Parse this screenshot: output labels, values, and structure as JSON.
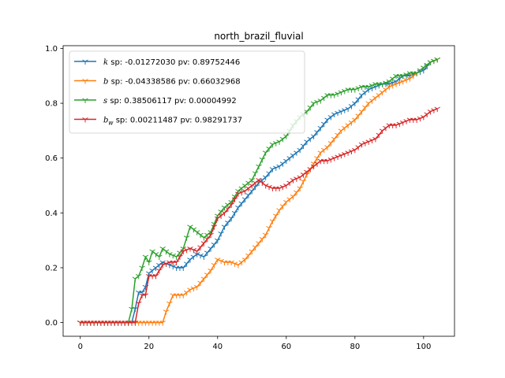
{
  "chart_data": {
    "type": "line",
    "title": "north_brazil_fluvial",
    "xlabel": "",
    "ylabel": "",
    "xlim": [
      -5,
      109
    ],
    "ylim": [
      -0.05,
      1.01
    ],
    "xticks": [
      0,
      20,
      40,
      60,
      80,
      100
    ],
    "yticks": [
      0.0,
      0.2,
      0.4,
      0.6,
      0.8,
      1.0
    ],
    "xtick_labels": [
      "0",
      "20",
      "40",
      "60",
      "80",
      "100"
    ],
    "ytick_labels": [
      "0.0",
      "0.2",
      "0.4",
      "0.6",
      "0.8",
      "1.0"
    ],
    "grid": false,
    "legend_position": "top-left",
    "series": [
      {
        "sym": "k",
        "sub": "",
        "stats": " sp: -0.01272030 pv: 0.89752446",
        "color": "#1f77b4",
        "points": [
          [
            0,
            0
          ],
          [
            15,
            0
          ],
          [
            16,
            0.05
          ],
          [
            17,
            0.11
          ],
          [
            18,
            0.11
          ],
          [
            19,
            0.13
          ],
          [
            20,
            0.18
          ],
          [
            22,
            0.2
          ],
          [
            24,
            0.22
          ],
          [
            26,
            0.21
          ],
          [
            28,
            0.2
          ],
          [
            30,
            0.2
          ],
          [
            32,
            0.23
          ],
          [
            34,
            0.25
          ],
          [
            36,
            0.24
          ],
          [
            38,
            0.27
          ],
          [
            40,
            0.3
          ],
          [
            42,
            0.35
          ],
          [
            44,
            0.38
          ],
          [
            46,
            0.42
          ],
          [
            48,
            0.45
          ],
          [
            50,
            0.48
          ],
          [
            52,
            0.51
          ],
          [
            54,
            0.53
          ],
          [
            56,
            0.56
          ],
          [
            58,
            0.57
          ],
          [
            60,
            0.59
          ],
          [
            62,
            0.61
          ],
          [
            64,
            0.63
          ],
          [
            66,
            0.66
          ],
          [
            68,
            0.68
          ],
          [
            70,
            0.71
          ],
          [
            72,
            0.74
          ],
          [
            74,
            0.76
          ],
          [
            76,
            0.77
          ],
          [
            78,
            0.78
          ],
          [
            80,
            0.8
          ],
          [
            82,
            0.83
          ],
          [
            84,
            0.85
          ],
          [
            86,
            0.86
          ],
          [
            88,
            0.87
          ],
          [
            90,
            0.87
          ],
          [
            92,
            0.88
          ],
          [
            94,
            0.9
          ],
          [
            96,
            0.9
          ],
          [
            98,
            0.91
          ],
          [
            100,
            0.92
          ],
          [
            102,
            0.95
          ],
          [
            104,
            0.96
          ]
        ]
      },
      {
        "sym": "b",
        "sub": "",
        "stats": " sp: -0.04338586 pv: 0.66032968",
        "color": "#ff7f0e",
        "points": [
          [
            0,
            0
          ],
          [
            24,
            0
          ],
          [
            25,
            0.04
          ],
          [
            26,
            0.07
          ],
          [
            27,
            0.1
          ],
          [
            28,
            0.1
          ],
          [
            30,
            0.1
          ],
          [
            32,
            0.12
          ],
          [
            34,
            0.13
          ],
          [
            36,
            0.16
          ],
          [
            38,
            0.19
          ],
          [
            40,
            0.23
          ],
          [
            42,
            0.22
          ],
          [
            44,
            0.22
          ],
          [
            46,
            0.21
          ],
          [
            48,
            0.23
          ],
          [
            50,
            0.26
          ],
          [
            52,
            0.29
          ],
          [
            54,
            0.32
          ],
          [
            56,
            0.37
          ],
          [
            58,
            0.41
          ],
          [
            60,
            0.44
          ],
          [
            62,
            0.46
          ],
          [
            64,
            0.49
          ],
          [
            66,
            0.54
          ],
          [
            68,
            0.58
          ],
          [
            70,
            0.62
          ],
          [
            72,
            0.64
          ],
          [
            74,
            0.67
          ],
          [
            76,
            0.7
          ],
          [
            78,
            0.72
          ],
          [
            80,
            0.74
          ],
          [
            82,
            0.77
          ],
          [
            84,
            0.8
          ],
          [
            86,
            0.82
          ],
          [
            88,
            0.84
          ],
          [
            90,
            0.86
          ],
          [
            92,
            0.87
          ],
          [
            94,
            0.88
          ],
          [
            96,
            0.89
          ],
          [
            98,
            0.91
          ],
          [
            100,
            0.93
          ],
          [
            102,
            0.95
          ],
          [
            104,
            0.96
          ]
        ]
      },
      {
        "sym": "s",
        "sub": "",
        "stats": " sp: 0.38506117 pv: 0.00004992",
        "color": "#2ca02c",
        "points": [
          [
            0,
            0
          ],
          [
            14,
            0
          ],
          [
            15,
            0.05
          ],
          [
            16,
            0.16
          ],
          [
            17,
            0.17
          ],
          [
            18,
            0.2
          ],
          [
            19,
            0.24
          ],
          [
            20,
            0.22
          ],
          [
            21,
            0.26
          ],
          [
            22,
            0.25
          ],
          [
            23,
            0.24
          ],
          [
            24,
            0.27
          ],
          [
            26,
            0.25
          ],
          [
            28,
            0.24
          ],
          [
            30,
            0.27
          ],
          [
            32,
            0.35
          ],
          [
            34,
            0.33
          ],
          [
            36,
            0.31
          ],
          [
            38,
            0.33
          ],
          [
            40,
            0.39
          ],
          [
            42,
            0.42
          ],
          [
            44,
            0.44
          ],
          [
            46,
            0.48
          ],
          [
            48,
            0.5
          ],
          [
            50,
            0.52
          ],
          [
            52,
            0.57
          ],
          [
            54,
            0.62
          ],
          [
            56,
            0.65
          ],
          [
            58,
            0.66
          ],
          [
            60,
            0.68
          ],
          [
            62,
            0.72
          ],
          [
            64,
            0.75
          ],
          [
            66,
            0.77
          ],
          [
            68,
            0.8
          ],
          [
            70,
            0.81
          ],
          [
            72,
            0.83
          ],
          [
            74,
            0.83
          ],
          [
            76,
            0.84
          ],
          [
            78,
            0.85
          ],
          [
            80,
            0.85
          ],
          [
            82,
            0.86
          ],
          [
            84,
            0.86
          ],
          [
            86,
            0.87
          ],
          [
            88,
            0.87
          ],
          [
            90,
            0.88
          ],
          [
            92,
            0.9
          ],
          [
            94,
            0.9
          ],
          [
            96,
            0.91
          ],
          [
            98,
            0.91
          ],
          [
            100,
            0.93
          ],
          [
            102,
            0.95
          ],
          [
            104,
            0.96
          ]
        ]
      },
      {
        "sym": "b",
        "sub": "w",
        "stats": " sp: 0.00211487 pv: 0.98291737",
        "color": "#d62728",
        "points": [
          [
            0,
            0
          ],
          [
            16,
            0
          ],
          [
            17,
            0.07
          ],
          [
            18,
            0.1
          ],
          [
            19,
            0.1
          ],
          [
            20,
            0.17
          ],
          [
            22,
            0.17
          ],
          [
            24,
            0.21
          ],
          [
            26,
            0.22
          ],
          [
            28,
            0.22
          ],
          [
            30,
            0.26
          ],
          [
            32,
            0.27
          ],
          [
            34,
            0.26
          ],
          [
            36,
            0.29
          ],
          [
            38,
            0.32
          ],
          [
            40,
            0.38
          ],
          [
            42,
            0.4
          ],
          [
            44,
            0.43
          ],
          [
            46,
            0.47
          ],
          [
            48,
            0.48
          ],
          [
            50,
            0.5
          ],
          [
            52,
            0.52
          ],
          [
            54,
            0.5
          ],
          [
            56,
            0.49
          ],
          [
            58,
            0.49
          ],
          [
            60,
            0.5
          ],
          [
            62,
            0.52
          ],
          [
            64,
            0.53
          ],
          [
            66,
            0.55
          ],
          [
            68,
            0.57
          ],
          [
            70,
            0.59
          ],
          [
            72,
            0.59
          ],
          [
            74,
            0.6
          ],
          [
            76,
            0.61
          ],
          [
            78,
            0.62
          ],
          [
            80,
            0.63
          ],
          [
            82,
            0.65
          ],
          [
            84,
            0.66
          ],
          [
            86,
            0.67
          ],
          [
            88,
            0.7
          ],
          [
            90,
            0.72
          ],
          [
            92,
            0.72
          ],
          [
            94,
            0.73
          ],
          [
            96,
            0.74
          ],
          [
            98,
            0.74
          ],
          [
            100,
            0.75
          ],
          [
            102,
            0.77
          ],
          [
            104,
            0.78
          ]
        ]
      }
    ]
  }
}
